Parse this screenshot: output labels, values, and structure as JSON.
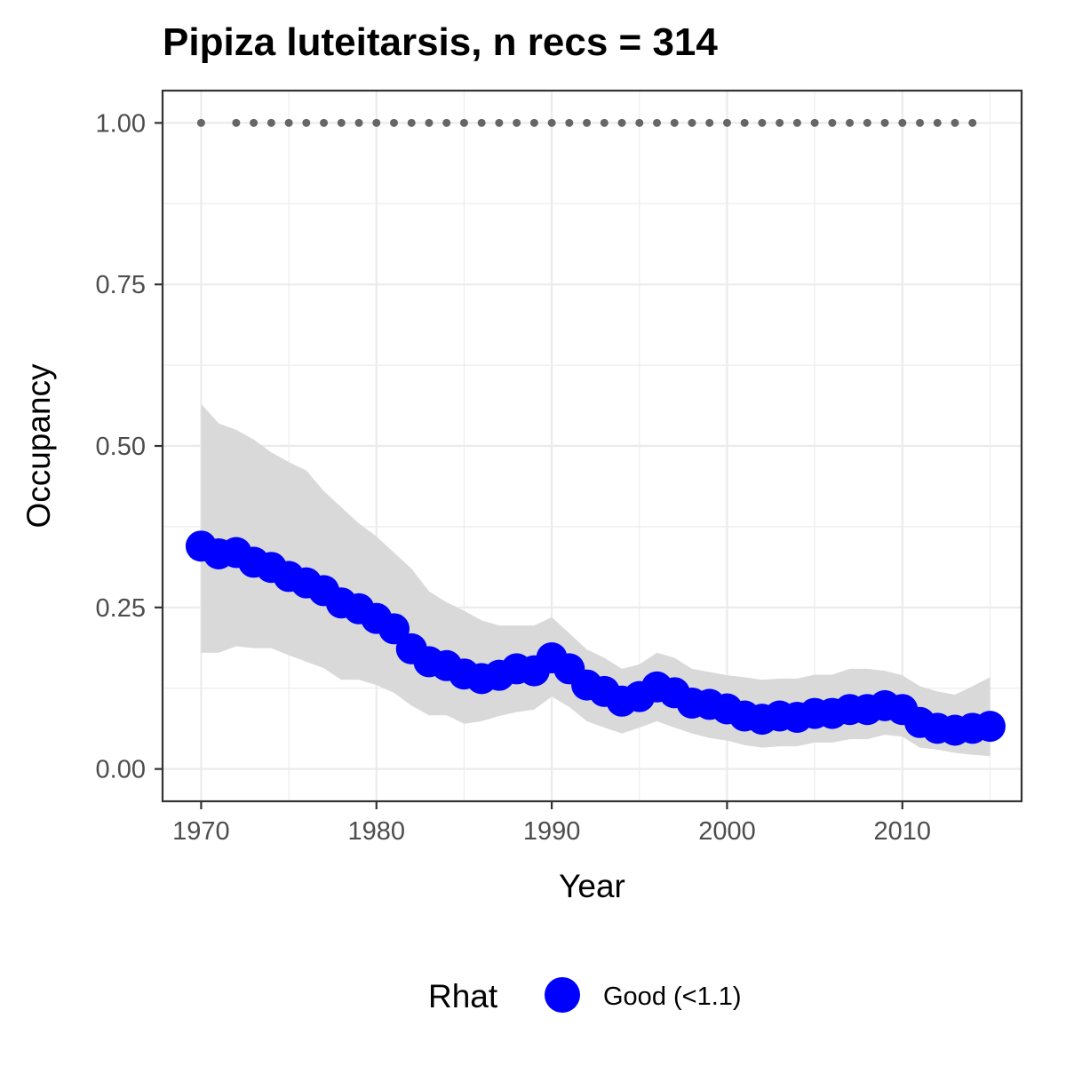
{
  "chart_data": {
    "type": "line",
    "title": "Pipiza luteitarsis, n recs = 314",
    "xlabel": "Year",
    "ylabel": "Occupancy",
    "xlim": [
      1967.8,
      2016.8
    ],
    "ylim": [
      -0.05,
      1.05
    ],
    "x_ticks": [
      1970,
      1980,
      1990,
      2000,
      2010
    ],
    "x_tick_labels": [
      "1970",
      "1980",
      "1990",
      "2000",
      "2010"
    ],
    "y_ticks": [
      0,
      0.25,
      0.5,
      0.75,
      1.0
    ],
    "y_tick_labels": [
      "0.00",
      "0.25",
      "0.50",
      "0.75",
      "1.00"
    ],
    "grid": true,
    "legend": {
      "title": "Rhat",
      "position": "bottom",
      "entries": [
        {
          "label": "Good (<1.1)",
          "color": "#0000ff"
        }
      ]
    },
    "colors": {
      "line": "#0000ff",
      "ribbon": "#d9d9d9",
      "record_dots": "#666666",
      "panel_border": "#333333",
      "grid": "#ebebeb"
    },
    "x": [
      1970,
      1971,
      1972,
      1973,
      1974,
      1975,
      1976,
      1977,
      1978,
      1979,
      1980,
      1981,
      1982,
      1983,
      1984,
      1985,
      1986,
      1987,
      1988,
      1989,
      1990,
      1991,
      1992,
      1993,
      1994,
      1995,
      1996,
      1997,
      1998,
      1999,
      2000,
      2001,
      2002,
      2003,
      2004,
      2005,
      2006,
      2007,
      2008,
      2009,
      2010,
      2011,
      2012,
      2013,
      2014,
      2015
    ],
    "series": [
      {
        "name": "Good (<1.1)",
        "values": [
          0.345,
          0.333,
          0.335,
          0.32,
          0.312,
          0.298,
          0.288,
          0.276,
          0.257,
          0.248,
          0.233,
          0.217,
          0.186,
          0.166,
          0.16,
          0.147,
          0.14,
          0.145,
          0.155,
          0.152,
          0.172,
          0.155,
          0.13,
          0.12,
          0.105,
          0.112,
          0.127,
          0.118,
          0.102,
          0.1,
          0.093,
          0.082,
          0.077,
          0.082,
          0.08,
          0.086,
          0.086,
          0.092,
          0.092,
          0.098,
          0.092,
          0.072,
          0.063,
          0.06,
          0.063,
          0.066
        ]
      }
    ],
    "ci_upper": [
      0.565,
      0.535,
      0.525,
      0.51,
      0.49,
      0.475,
      0.462,
      0.43,
      0.405,
      0.38,
      0.36,
      0.335,
      0.31,
      0.275,
      0.258,
      0.245,
      0.23,
      0.222,
      0.222,
      0.222,
      0.235,
      0.21,
      0.185,
      0.172,
      0.155,
      0.162,
      0.18,
      0.172,
      0.155,
      0.15,
      0.145,
      0.142,
      0.138,
      0.14,
      0.14,
      0.146,
      0.146,
      0.155,
      0.155,
      0.152,
      0.145,
      0.128,
      0.12,
      0.115,
      0.128,
      0.142
    ],
    "ci_lower": [
      0.18,
      0.18,
      0.19,
      0.187,
      0.187,
      0.176,
      0.166,
      0.156,
      0.138,
      0.138,
      0.13,
      0.118,
      0.098,
      0.083,
      0.083,
      0.07,
      0.074,
      0.082,
      0.088,
      0.092,
      0.112,
      0.096,
      0.074,
      0.064,
      0.055,
      0.064,
      0.074,
      0.064,
      0.055,
      0.048,
      0.044,
      0.037,
      0.033,
      0.035,
      0.035,
      0.041,
      0.041,
      0.046,
      0.046,
      0.053,
      0.05,
      0.033,
      0.03,
      0.025,
      0.022,
      0.02
    ],
    "record_years": [
      1970,
      1972,
      1973,
      1974,
      1975,
      1976,
      1977,
      1978,
      1979,
      1980,
      1981,
      1982,
      1983,
      1984,
      1985,
      1986,
      1987,
      1988,
      1989,
      1990,
      1991,
      1992,
      1993,
      1994,
      1995,
      1996,
      1997,
      1998,
      1999,
      2000,
      2001,
      2002,
      2003,
      2004,
      2005,
      2006,
      2007,
      2008,
      2009,
      2010,
      2011,
      2012,
      2013,
      2014
    ],
    "record_value": 1.0
  }
}
